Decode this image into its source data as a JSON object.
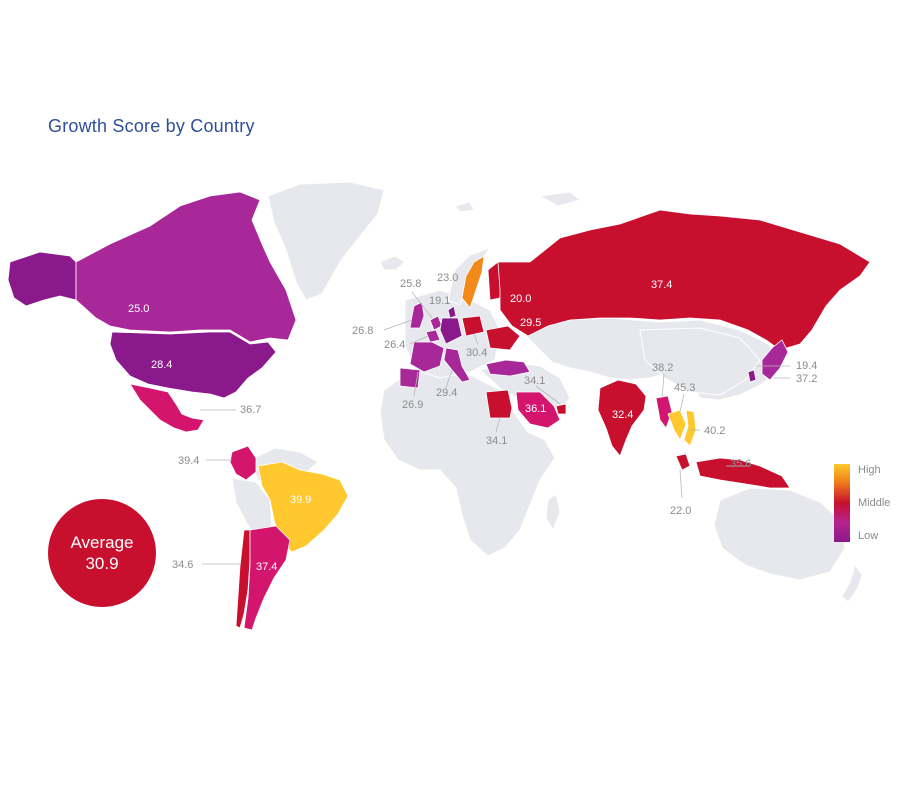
{
  "title": "Growth Score by Country",
  "average": {
    "label": "Average",
    "value": "30.9"
  },
  "legend": {
    "high": "High",
    "middle": "Middle",
    "low": "Low"
  },
  "colors": {
    "high": "#ffc82e",
    "orange": "#f28a1a",
    "middle": "#c8102e",
    "magenta": "#d4156e",
    "purple": "#a8289a",
    "low": "#8a1a8c",
    "land": "#e6e8ee",
    "average_circle": "#c8102e",
    "title": "#2f4f9a"
  },
  "countries": [
    {
      "name": "Canada",
      "score": "25.0",
      "color": "#a8289a"
    },
    {
      "name": "United States",
      "score": "28.4",
      "color": "#8a1a8c"
    },
    {
      "name": "Mexico",
      "score": "36.7",
      "color": "#d4156e"
    },
    {
      "name": "Colombia",
      "score": "39.4",
      "color": "#d4156e"
    },
    {
      "name": "Brazil",
      "score": "39.9",
      "color": "#ffc82e"
    },
    {
      "name": "Chile",
      "score": "34.6",
      "color": "#c8102e"
    },
    {
      "name": "Argentina",
      "score": "37.4",
      "color": "#d4156e"
    },
    {
      "name": "Sweden",
      "score": "23.0",
      "color": "#f28a1a"
    },
    {
      "name": "Denmark",
      "score": "19.1",
      "color": "#8a1a8c"
    },
    {
      "name": "Netherlands",
      "score": "25.8",
      "color": "#a8289a"
    },
    {
      "name": "United Kingdom",
      "score": "26.8",
      "color": "#a8289a"
    },
    {
      "name": "Belgium",
      "score": "26.4",
      "color": "#a8289a"
    },
    {
      "name": "France",
      "score": "26.9",
      "color": "#a8289a"
    },
    {
      "name": "Italy",
      "score": "29.4",
      "color": "#a8289a"
    },
    {
      "name": "Poland",
      "score": "30.4",
      "color": "#c8102e"
    },
    {
      "name": "Ukraine",
      "score": "29.5",
      "color": "#c8102e"
    },
    {
      "name": "Russia",
      "score": "37.4",
      "color": "#c8102e"
    },
    {
      "name": "Finland",
      "score": "20.0",
      "color": "#c8102e"
    },
    {
      "name": "Egypt",
      "score": "34.1",
      "color": "#c8102e"
    },
    {
      "name": "Saudi Arabia",
      "score": "36.1",
      "color": "#d4156e"
    },
    {
      "name": "United Arab Emirates",
      "score": "34.1",
      "color": "#c8102e"
    },
    {
      "name": "India",
      "score": "32.4",
      "color": "#c8102e"
    },
    {
      "name": "Myanmar",
      "score": "38.2",
      "color": "#d4156e"
    },
    {
      "name": "Thailand",
      "score": "45.3",
      "color": "#ffc82e"
    },
    {
      "name": "Vietnam",
      "score": "40.2",
      "color": "#ffc82e"
    },
    {
      "name": "Malaysia",
      "score": "22.0",
      "color": "#c8102e"
    },
    {
      "name": "Indonesia",
      "score": "35.6",
      "color": "#c8102e"
    },
    {
      "name": "Japan",
      "score": "37.2",
      "color": "#a8289a"
    },
    {
      "name": "South Korea",
      "score": "19.4",
      "color": "#8a1a8c"
    },
    {
      "name": "Turkey",
      "score": "",
      "color": "#a8289a"
    }
  ]
}
